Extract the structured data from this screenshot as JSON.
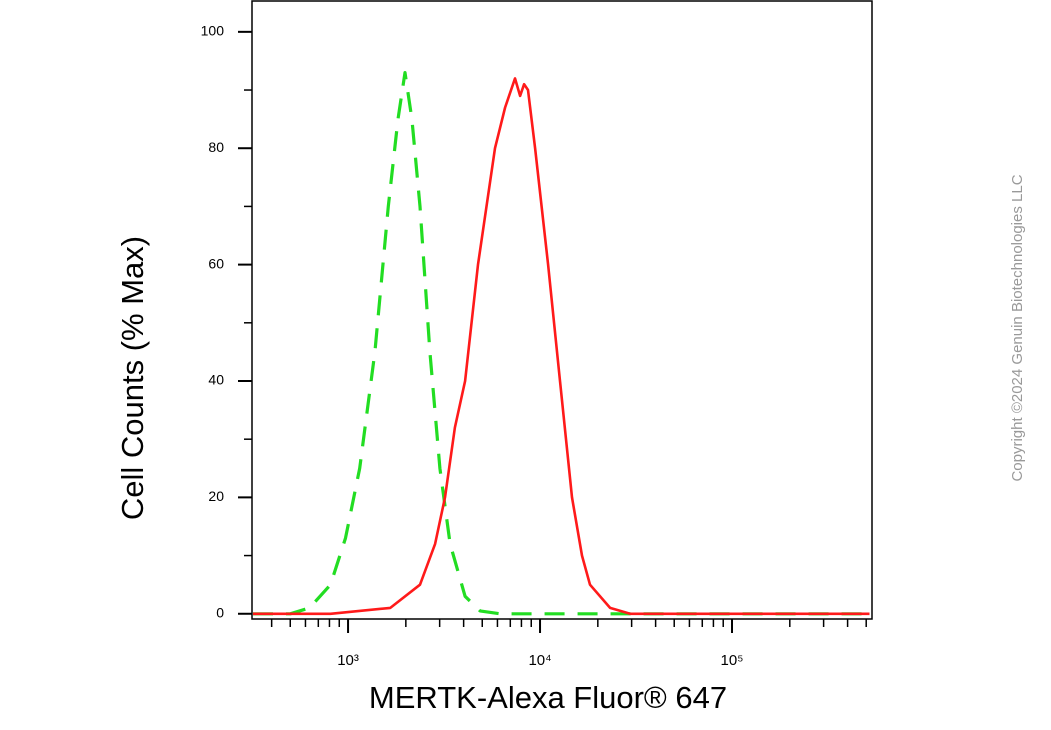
{
  "chart_data": {
    "type": "line",
    "x_label": "MERTK-Alexa Fluor® 647",
    "y_label": "Cell Counts (% Max)",
    "copyright": "Copyright ©2024 Genuin Biotechnologies LLC",
    "x_log": true,
    "xlim": [
      316,
      536000
    ],
    "ylim": [
      -0.9,
      105.3
    ],
    "xticks": [
      {
        "value": 1000,
        "label": "10³"
      },
      {
        "value": 10000,
        "label": "10⁴"
      },
      {
        "value": 100000,
        "label": "10⁵"
      }
    ],
    "xminorticks": [
      400,
      500,
      600,
      700,
      800,
      900,
      2000,
      3000,
      4000,
      5000,
      6000,
      7000,
      8000,
      9000,
      20000,
      30000,
      40000,
      50000,
      60000,
      70000,
      80000,
      90000,
      200000,
      300000,
      400000,
      500000
    ],
    "yticks": [
      0,
      20,
      40,
      60,
      80,
      100
    ],
    "yminorticks": [
      10,
      30,
      50,
      70,
      90
    ],
    "series": [
      {
        "color": "#22dd22",
        "dashed": true,
        "x": [
          320,
          500,
          630,
          810,
          970,
          1150,
          1380,
          1620,
          1820,
          1980,
          2150,
          2370,
          2670,
          3010,
          3400,
          4070,
          4870,
          6190,
          520000
        ],
        "values": [
          0,
          0,
          1,
          5,
          13,
          25,
          45,
          70,
          85,
          93,
          85,
          70,
          45,
          25,
          12,
          3,
          0.5,
          0,
          0
        ]
      },
      {
        "color": "#ff1a1a",
        "dashed": false,
        "x": [
          320,
          810,
          1660,
          2370,
          2840,
          3200,
          3600,
          4070,
          4750,
          5830,
          6580,
          7410,
          7870,
          8260,
          8660,
          9420,
          11010,
          12710,
          14680,
          16550,
          18200,
          23170,
          29440,
          520000
        ],
        "values": [
          0,
          0,
          1,
          5,
          12,
          20,
          32,
          40,
          60,
          80,
          87,
          92,
          89,
          91,
          90,
          80,
          60,
          40,
          20,
          10,
          5,
          1,
          0,
          0
        ]
      }
    ]
  }
}
